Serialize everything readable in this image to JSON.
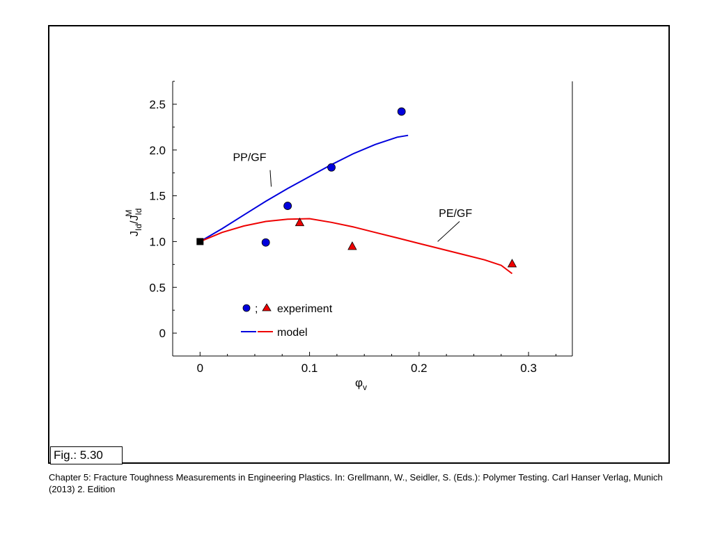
{
  "figure": {
    "label": "Fig.: 5.30",
    "caption": "Chapter 5: Fracture Toughness Measurements in Engineering Plastics. In: Grellmann, W., Seidler, S. (Eds.): Polymer Testing. Carl Hanser Verlag, Munich (2013) 2. Edition"
  },
  "chart_data": {
    "type": "scatter",
    "title": "",
    "xlabel": "φv",
    "ylabel": "JId/JIdM",
    "xlim": [
      -0.025,
      0.34
    ],
    "ylim": [
      -0.25,
      2.75
    ],
    "xticks": [
      {
        "v": 0,
        "label": "0"
      },
      {
        "v": 0.1,
        "label": "0.1"
      },
      {
        "v": 0.2,
        "label": "0.2"
      },
      {
        "v": 0.3,
        "label": "0.3"
      }
    ],
    "yticks": [
      {
        "v": 0,
        "label": "0"
      },
      {
        "v": 0.5,
        "label": "0.5"
      },
      {
        "v": 1.0,
        "label": "1.0"
      },
      {
        "v": 1.5,
        "label": "1.5"
      },
      {
        "v": 2.0,
        "label": "2.0"
      },
      {
        "v": 2.5,
        "label": "2.5"
      }
    ],
    "grid": false,
    "colors": {
      "pp": "#0000dd",
      "pe": "#ee0000",
      "origin": "#000000"
    },
    "origin_point": {
      "x": 0,
      "y": 1.0,
      "marker": "square"
    },
    "series": [
      {
        "name": "PP/GF",
        "kind": "experiment",
        "marker": "circle",
        "color": "#0000dd",
        "points": [
          [
            0.06,
            0.99
          ],
          [
            0.08,
            1.39
          ],
          [
            0.12,
            1.81
          ],
          [
            0.184,
            2.42
          ]
        ]
      },
      {
        "name": "PE/GF",
        "kind": "experiment",
        "marker": "triangle",
        "color": "#ee0000",
        "points": [
          [
            0.091,
            1.21
          ],
          [
            0.139,
            0.95
          ],
          [
            0.285,
            0.76
          ]
        ]
      },
      {
        "name": "PP/GF",
        "kind": "model",
        "color": "#0000dd",
        "points": [
          [
            0,
            1.0
          ],
          [
            0.02,
            1.14
          ],
          [
            0.04,
            1.29
          ],
          [
            0.06,
            1.44
          ],
          [
            0.08,
            1.58
          ],
          [
            0.1,
            1.71
          ],
          [
            0.12,
            1.84
          ],
          [
            0.14,
            1.96
          ],
          [
            0.16,
            2.06
          ],
          [
            0.18,
            2.14
          ],
          [
            0.19,
            2.16
          ]
        ]
      },
      {
        "name": "PE/GF",
        "kind": "model",
        "color": "#ee0000",
        "points": [
          [
            0,
            1.0
          ],
          [
            0.02,
            1.1
          ],
          [
            0.04,
            1.17
          ],
          [
            0.06,
            1.22
          ],
          [
            0.08,
            1.245
          ],
          [
            0.1,
            1.25
          ],
          [
            0.12,
            1.21
          ],
          [
            0.14,
            1.16
          ],
          [
            0.16,
            1.1
          ],
          [
            0.18,
            1.04
          ],
          [
            0.2,
            0.98
          ],
          [
            0.22,
            0.92
          ],
          [
            0.24,
            0.86
          ],
          [
            0.26,
            0.8
          ],
          [
            0.275,
            0.74
          ],
          [
            0.285,
            0.65
          ]
        ]
      }
    ],
    "annotations": [
      {
        "text": "PP/GF",
        "pos": [
          0.03,
          1.88
        ],
        "leader_from": [
          0.064,
          1.78
        ],
        "leader_to": [
          0.065,
          1.6
        ]
      },
      {
        "text": "PE/GF",
        "pos": [
          0.218,
          1.27
        ],
        "leader_from": [
          0.237,
          1.22
        ],
        "leader_to": [
          0.217,
          1.0
        ]
      }
    ],
    "legend": {
      "position": "bottom-left",
      "experiment_label": "experiment",
      "separator": ";",
      "model_label": "model"
    }
  }
}
